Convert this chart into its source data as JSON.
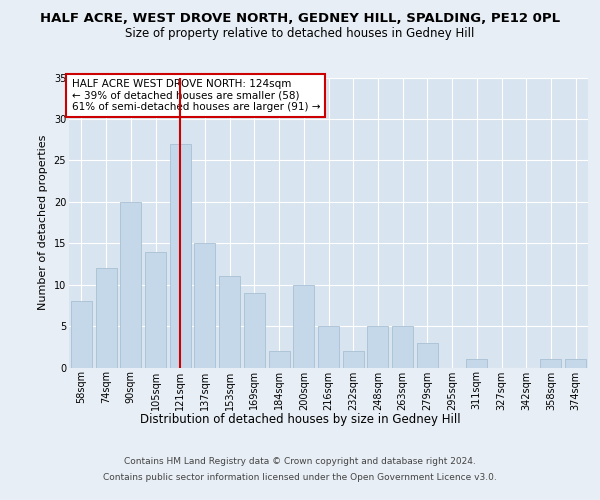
{
  "title": "HALF ACRE, WEST DROVE NORTH, GEDNEY HILL, SPALDING, PE12 0PL",
  "subtitle": "Size of property relative to detached houses in Gedney Hill",
  "xlabel": "Distribution of detached houses by size in Gedney Hill",
  "ylabel": "Number of detached properties",
  "categories": [
    "58sqm",
    "74sqm",
    "90sqm",
    "105sqm",
    "121sqm",
    "137sqm",
    "153sqm",
    "169sqm",
    "184sqm",
    "200sqm",
    "216sqm",
    "232sqm",
    "248sqm",
    "263sqm",
    "279sqm",
    "295sqm",
    "311sqm",
    "327sqm",
    "342sqm",
    "358sqm",
    "374sqm"
  ],
  "values": [
    8,
    12,
    20,
    14,
    27,
    15,
    11,
    9,
    2,
    10,
    5,
    2,
    5,
    5,
    3,
    0,
    1,
    0,
    0,
    1,
    1
  ],
  "bar_color": "#c5d8ea",
  "bar_edgecolor": "#a8c0d4",
  "vline_x_index": 4,
  "vline_color": "#cc0000",
  "annotation_text": "HALF ACRE WEST DROVE NORTH: 124sqm\n← 39% of detached houses are smaller (58)\n61% of semi-detached houses are larger (91) →",
  "annotation_box_color": "#ffffff",
  "annotation_box_edgecolor": "#cc0000",
  "ylim": [
    0,
    35
  ],
  "yticks": [
    0,
    5,
    10,
    15,
    20,
    25,
    30,
    35
  ],
  "background_color": "#e8eef5",
  "plot_bg_color": "#d8e4f0",
  "grid_color": "#ffffff",
  "footer_line1": "Contains HM Land Registry data © Crown copyright and database right 2024.",
  "footer_line2": "Contains public sector information licensed under the Open Government Licence v3.0.",
  "title_fontsize": 9.5,
  "subtitle_fontsize": 8.5,
  "xlabel_fontsize": 8.5,
  "ylabel_fontsize": 8,
  "tick_fontsize": 7,
  "annotation_fontsize": 7.5,
  "footer_fontsize": 6.5
}
